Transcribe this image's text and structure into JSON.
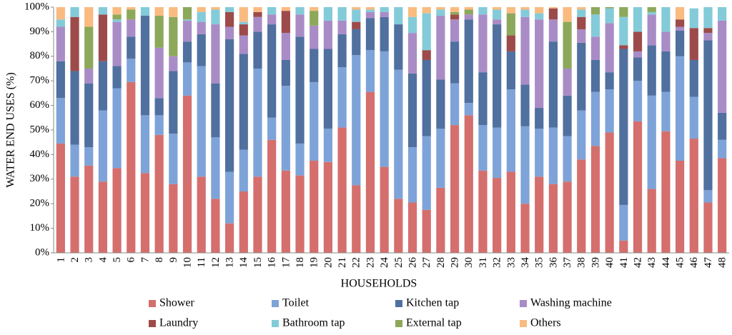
{
  "chart_data": {
    "type": "stacked-bar",
    "x_label": "HOUSEHOLDS",
    "y_label": "WATER END USES (%)",
    "categories": [
      "1",
      "2",
      "3",
      "4",
      "5",
      "6",
      "7",
      "8",
      "9",
      "10",
      "11",
      "12",
      "13",
      "14",
      "15",
      "16",
      "17",
      "18",
      "19",
      "20",
      "21",
      "22",
      "23",
      "24",
      "25",
      "26",
      "27",
      "28",
      "29",
      "30",
      "31",
      "32",
      "33",
      "34",
      "35",
      "36",
      "37",
      "38",
      "39",
      "40",
      "41",
      "42",
      "43",
      "44",
      "45",
      "46",
      "47",
      "48"
    ],
    "ylim": [
      0,
      100
    ],
    "yticks": [
      {
        "value": 0,
        "label": "0%"
      },
      {
        "value": 10,
        "label": "10%"
      },
      {
        "value": 20,
        "label": "20%"
      },
      {
        "value": 30,
        "label": "30%"
      },
      {
        "value": 40,
        "label": "40%"
      },
      {
        "value": 50,
        "label": "50%"
      },
      {
        "value": 60,
        "label": "60%"
      },
      {
        "value": 70,
        "label": "70%"
      },
      {
        "value": 80,
        "label": "80%"
      },
      {
        "value": 90,
        "label": "90%"
      },
      {
        "value": 100,
        "label": "100%"
      }
    ],
    "legend": "bottom",
    "series": [
      {
        "name": "Shower",
        "color": "#d46f6d",
        "values": [
          44.5,
          31,
          35.5,
          29,
          34.5,
          69.5,
          32.5,
          48,
          28,
          64,
          31,
          22,
          12,
          25,
          31,
          46,
          33.5,
          31.5,
          37.5,
          37,
          51,
          27.5,
          65.5,
          35,
          22,
          20.5,
          17.5,
          26.5,
          52,
          56,
          33.5,
          30.5,
          33,
          20,
          31,
          28,
          29,
          38,
          43.5,
          49,
          5,
          53.5,
          26,
          49.5,
          37.5,
          46.5,
          20.5,
          38.5
        ]
      },
      {
        "name": "Toilet",
        "color": "#7ea3d8",
        "values": [
          18.5,
          13,
          7.5,
          29,
          32.5,
          9.5,
          23.5,
          8,
          20.5,
          13.5,
          45,
          25,
          21,
          17,
          44,
          9,
          34.5,
          13,
          32,
          13.5,
          24.5,
          53,
          17,
          47,
          52.5,
          22.5,
          30,
          24,
          17,
          5,
          18.5,
          20.5,
          33.5,
          31.5,
          19.5,
          23,
          18.5,
          20,
          22,
          17.5,
          14.5,
          16.5,
          38,
          16,
          42.5,
          17,
          5,
          7.5
        ]
      },
      {
        "name": "Kitchen tap",
        "color": "#50709f",
        "values": [
          15,
          30,
          26,
          20,
          9,
          9,
          40.5,
          7,
          25.5,
          8.5,
          13,
          22,
          54,
          39,
          15,
          38,
          10.5,
          43.5,
          13.5,
          32.5,
          13.5,
          10.5,
          13,
          14,
          18.5,
          30,
          31,
          20,
          17,
          34,
          21.5,
          42,
          15.5,
          17,
          8.5,
          35,
          16.5,
          27.5,
          13,
          7,
          63.5,
          9.5,
          20.5,
          16.5,
          10.5,
          15,
          61,
          11
        ]
      },
      {
        "name": "Washing machine",
        "color": "#a98cc6",
        "values": [
          14,
          0,
          6,
          0,
          18,
          7,
          0,
          20.5,
          6,
          8.5,
          5,
          24,
          5,
          7.5,
          6,
          4,
          11,
          9,
          9.5,
          11.5,
          5.5,
          0,
          2.5,
          2,
          0,
          16.5,
          0,
          26,
          9,
          2,
          23.5,
          2,
          0,
          27.5,
          36,
          9,
          11,
          5.5,
          9.5,
          20,
          0,
          2.5,
          12.5,
          8,
          1.5,
          0,
          3,
          37.5
        ]
      },
      {
        "name": "Laundry",
        "color": "#9c4b4a",
        "values": [
          0,
          22,
          0,
          19,
          0,
          0,
          0,
          0,
          0,
          0,
          0,
          0,
          6,
          4.5,
          2,
          0,
          9,
          0,
          0,
          0,
          0,
          3,
          0,
          0,
          0,
          0,
          4,
          0,
          2,
          0,
          0,
          0,
          6.5,
          0,
          0,
          4.5,
          0,
          5,
          0,
          0,
          1.5,
          8,
          0,
          0,
          3,
          13,
          2,
          0
        ]
      },
      {
        "name": "Bathroom tap",
        "color": "#83cbd9",
        "values": [
          3,
          4,
          0,
          3,
          1,
          0,
          3.5,
          0,
          0,
          0.5,
          4,
          6,
          2,
          1,
          0,
          3,
          0,
          3,
          0,
          5.5,
          5.5,
          5,
          1,
          2,
          7,
          6.5,
          15,
          2.5,
          0,
          0,
          3,
          4,
          0,
          3,
          2.5,
          0,
          0,
          3,
          9,
          6,
          11.5,
          10,
          1,
          10,
          0,
          8,
          8.5,
          5.5
        ]
      },
      {
        "name": "External tap",
        "color": "#8ca85a",
        "values": [
          0,
          0,
          17,
          0,
          2,
          4,
          0,
          13,
          16,
          5,
          0,
          0,
          0,
          0,
          0,
          0,
          0,
          0,
          6,
          0,
          0,
          0,
          0,
          0,
          0,
          0,
          0,
          0,
          1,
          2,
          0,
          0,
          9,
          0,
          0,
          0,
          19,
          0,
          3,
          0.5,
          4,
          0,
          2,
          0,
          0,
          0,
          0,
          0
        ]
      },
      {
        "name": "Others",
        "color": "#f9bb80",
        "values": [
          5,
          0,
          8,
          0,
          3,
          1,
          0,
          3.5,
          4,
          0,
          2,
          1,
          0,
          6,
          2,
          0,
          1.5,
          0,
          1.5,
          0,
          0,
          1,
          1,
          0,
          0,
          4,
          2.5,
          1,
          2,
          1,
          0,
          1,
          2.5,
          1,
          2.5,
          0.5,
          6,
          1,
          0,
          0,
          0,
          0,
          0,
          0,
          5,
          0,
          0,
          0
        ]
      }
    ]
  }
}
